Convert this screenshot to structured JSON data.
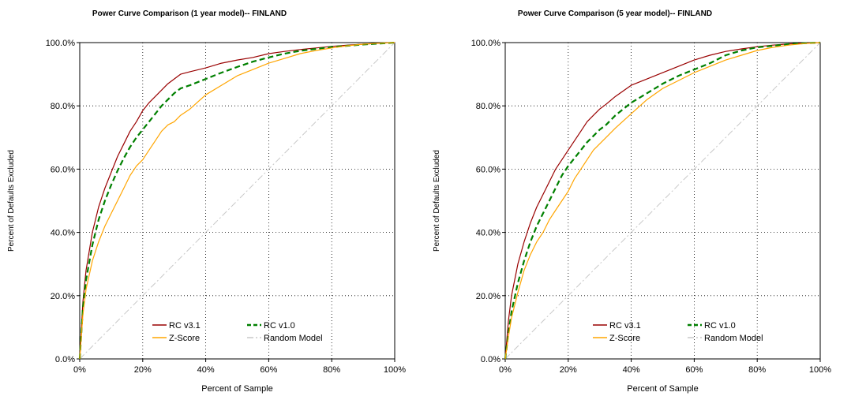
{
  "chart_data": [
    {
      "type": "line",
      "title": "Power Curve Comparison (1 year model)-- FINLAND",
      "xlabel": "Percent of Sample",
      "ylabel": "Percent of Defaults Excluded",
      "xlim": [
        0,
        100
      ],
      "ylim": [
        0,
        100
      ],
      "x_ticks": [
        "0%",
        "20%",
        "40%",
        "60%",
        "80%",
        "100%"
      ],
      "y_ticks": [
        "0.0%",
        "20.0%",
        "40.0%",
        "60.0%",
        "80.0%",
        "100.0%"
      ],
      "grid": true,
      "legend_position": "bottom-center",
      "series": [
        {
          "name": "RC v3.1",
          "color": "#990000",
          "dash": "solid",
          "x": [
            0,
            1,
            2,
            4,
            6,
            8,
            10,
            12,
            14,
            16,
            18,
            20,
            22,
            24,
            26,
            28,
            30,
            32,
            35,
            40,
            45,
            50,
            55,
            60,
            65,
            70,
            75,
            80,
            85,
            90,
            95,
            100
          ],
          "y": [
            0,
            18,
            28,
            40,
            48,
            54,
            59,
            64,
            68,
            72,
            75,
            78.5,
            81,
            83,
            85,
            87,
            88.5,
            90,
            90.8,
            92,
            93.5,
            94.5,
            95.3,
            96.5,
            97.2,
            97.8,
            98.3,
            98.8,
            99.2,
            99.5,
            99.8,
            100
          ]
        },
        {
          "name": "RC v1.0",
          "color": "#008000",
          "dash": "dashed",
          "x": [
            0,
            1,
            2,
            4,
            6,
            8,
            10,
            12,
            14,
            16,
            18,
            20,
            22,
            24,
            26,
            28,
            30,
            32,
            35,
            40,
            45,
            50,
            55,
            60,
            65,
            70,
            75,
            80,
            85,
            90,
            95,
            100
          ],
          "y": [
            0,
            16,
            25,
            36,
            44,
            50,
            55,
            59.5,
            63.5,
            67,
            70,
            72.5,
            75,
            77.5,
            80,
            82,
            84,
            85.5,
            86.5,
            88.5,
            90.5,
            92.3,
            94,
            95.3,
            96.5,
            97.4,
            98,
            98.6,
            99,
            99.4,
            99.7,
            100
          ]
        },
        {
          "name": "Z-Score",
          "color": "#ffa500",
          "dash": "solid",
          "x": [
            0,
            1,
            2,
            4,
            6,
            8,
            10,
            12,
            14,
            16,
            18,
            20,
            22,
            24,
            26,
            28,
            30,
            32,
            35,
            40,
            45,
            50,
            55,
            60,
            65,
            70,
            75,
            80,
            85,
            90,
            95,
            100
          ],
          "y": [
            0,
            14,
            22,
            31,
            37,
            42,
            46,
            50,
            54,
            58,
            61,
            63,
            66,
            69,
            72,
            74,
            75,
            77,
            79,
            83.5,
            86.5,
            89.5,
            91.5,
            93.5,
            95,
            96.5,
            97.5,
            98.3,
            99,
            99.5,
            99.8,
            100
          ]
        },
        {
          "name": "Random Model",
          "color": "#c8c8c8",
          "dash": "dashdot",
          "x": [
            0,
            100
          ],
          "y": [
            0,
            100
          ]
        }
      ]
    },
    {
      "type": "line",
      "title": "Power Curve Comparison (5 year model)-- FINLAND",
      "xlabel": "Percent of Sample",
      "ylabel": "Percent of Defaults Excluded",
      "xlim": [
        0,
        100
      ],
      "ylim": [
        0,
        100
      ],
      "x_ticks": [
        "0%",
        "20%",
        "40%",
        "60%",
        "80%",
        "100%"
      ],
      "y_ticks": [
        "0.0%",
        "20.0%",
        "40.0%",
        "60.0%",
        "80.0%",
        "100.0%"
      ],
      "grid": true,
      "legend_position": "bottom-center",
      "series": [
        {
          "name": "RC v3.1",
          "color": "#990000",
          "dash": "solid",
          "x": [
            0,
            1,
            2,
            4,
            6,
            8,
            10,
            12,
            14,
            16,
            18,
            20,
            22,
            24,
            26,
            28,
            30,
            32,
            35,
            40,
            45,
            50,
            55,
            60,
            65,
            70,
            75,
            80,
            85,
            90,
            95,
            100
          ],
          "y": [
            0,
            12,
            20,
            30,
            37,
            43,
            48,
            52,
            56,
            60,
            63,
            66,
            69,
            72,
            75,
            77,
            79,
            80.5,
            83,
            86.5,
            88.5,
            90.5,
            92.5,
            94.5,
            96,
            97.2,
            98,
            98.7,
            99.2,
            99.6,
            99.8,
            100
          ]
        },
        {
          "name": "RC v1.0",
          "color": "#008000",
          "dash": "dashed",
          "x": [
            0,
            1,
            2,
            4,
            6,
            8,
            10,
            12,
            14,
            16,
            18,
            20,
            22,
            24,
            26,
            28,
            30,
            32,
            35,
            40,
            45,
            50,
            55,
            60,
            65,
            70,
            75,
            80,
            85,
            90,
            95,
            100
          ],
          "y": [
            0,
            8,
            15,
            24,
            31,
            37,
            42,
            46,
            50,
            54,
            58,
            61,
            63.5,
            66,
            68.5,
            70.5,
            72.5,
            74,
            77,
            81,
            84,
            87,
            89.5,
            91.5,
            93.5,
            96,
            97.5,
            98.5,
            99,
            99.5,
            99.8,
            100
          ]
        },
        {
          "name": "Z-Score",
          "color": "#ffa500",
          "dash": "solid",
          "x": [
            0,
            1,
            2,
            4,
            6,
            8,
            10,
            12,
            14,
            16,
            18,
            20,
            22,
            24,
            26,
            28,
            30,
            32,
            35,
            40,
            45,
            50,
            55,
            60,
            65,
            70,
            75,
            80,
            85,
            90,
            95,
            100
          ],
          "y": [
            0,
            7,
            13,
            21,
            28,
            33,
            37,
            40,
            44,
            47,
            50,
            53,
            57,
            60,
            63,
            66,
            68,
            70,
            73,
            77.5,
            82,
            85.5,
            88,
            90.5,
            92.5,
            94.5,
            96,
            97.5,
            98.5,
            99.2,
            99.7,
            100
          ]
        },
        {
          "name": "Random Model",
          "color": "#c8c8c8",
          "dash": "dashdot",
          "x": [
            0,
            100
          ],
          "y": [
            0,
            100
          ]
        }
      ]
    }
  ]
}
